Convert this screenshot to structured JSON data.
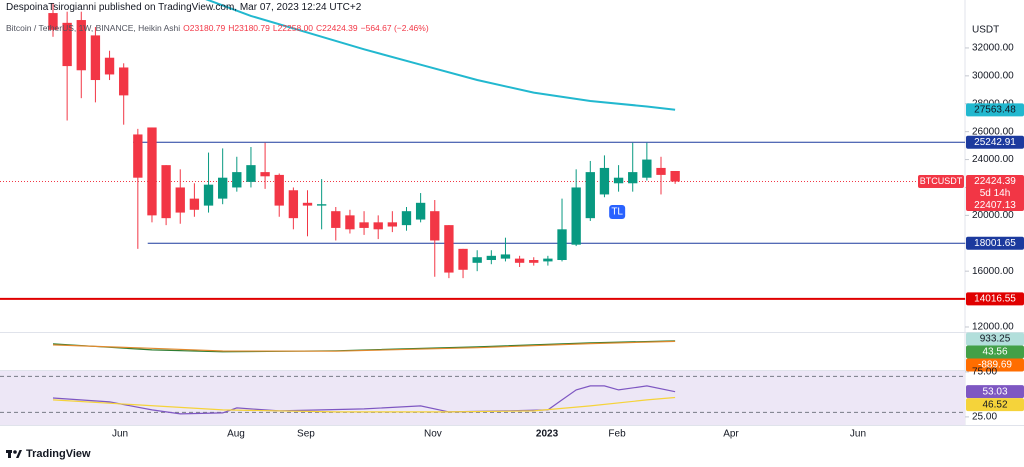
{
  "header": {
    "author_line": "DespoinaTsirogianni published on TradingView.com, Mar 07, 2023 12:24 UTC+2",
    "symbol": "Bitcoin / TetherUS, 1W, BINANCE, Heikin Ashi",
    "ohlc": [
      "O23180.79",
      "H23180.79",
      "L22258.00",
      "C22424.39"
    ],
    "change": "−564.67 (−2.46%)"
  },
  "chart_data": [
    {
      "type": "candlestick",
      "currency": "USDT",
      "open": [
        34500,
        33800,
        34000,
        32900,
        31300,
        30600,
        25800,
        26300,
        23600,
        22000,
        21200,
        20700,
        21200,
        22000,
        22400,
        23100,
        22900,
        21800,
        20900,
        20700,
        20300,
        20000,
        19500,
        19500,
        19500,
        19300,
        19700,
        20300,
        19300,
        17600,
        16600,
        16800,
        16900,
        16900,
        16800,
        16700,
        16800,
        17900,
        19800,
        21500,
        22300,
        22300,
        22700,
        23400,
        23180.79
      ],
      "high": [
        35200,
        34600,
        34600,
        33500,
        31800,
        30900,
        26200,
        26300,
        23600,
        23300,
        22300,
        24500,
        24800,
        24200,
        24900,
        25200,
        23000,
        22000,
        21800,
        22600,
        20600,
        20400,
        20300,
        20000,
        20300,
        20600,
        21600,
        21100,
        19300,
        17600,
        17500,
        17500,
        18400,
        17100,
        17000,
        17100,
        21200,
        23300,
        23900,
        24300,
        23600,
        25200,
        25200,
        24200,
        23180.79
      ],
      "low": [
        32800,
        26800,
        28400,
        28100,
        29700,
        26500,
        17600,
        19500,
        19300,
        19400,
        19900,
        20200,
        20800,
        21700,
        22000,
        21900,
        19900,
        19000,
        18500,
        19000,
        18200,
        18700,
        18600,
        18300,
        18800,
        18900,
        19500,
        15600,
        15500,
        15500,
        16000,
        16500,
        16700,
        16300,
        16400,
        16400,
        16700,
        17800,
        19600,
        21300,
        21700,
        21700,
        22500,
        21500,
        22258
      ],
      "close": [
        33300,
        30700,
        30400,
        29700,
        30100,
        28600,
        22700,
        20000,
        19800,
        20200,
        20400,
        22200,
        22700,
        23100,
        23600,
        22800,
        20700,
        19800,
        20700,
        20800,
        19100,
        19000,
        19100,
        19000,
        19200,
        20300,
        20900,
        18200,
        15900,
        16100,
        17000,
        17100,
        17200,
        16600,
        16600,
        16900,
        19000,
        22000,
        23100,
        23400,
        22700,
        23100,
        24000,
        22900,
        22424.39
      ],
      "up_color": "#089981",
      "down_color": "#f23645",
      "xlim": [
        -3.748,
        64.5
      ],
      "xticks": [
        {
          "value": 4.74,
          "label": "Jun"
        },
        {
          "value": 12.94,
          "label": "Aug"
        },
        {
          "value": 17.89,
          "label": "Sep"
        },
        {
          "value": 26.87,
          "label": "Nov"
        },
        {
          "value": 34.94,
          "label": "2023"
        },
        {
          "value": 39.89,
          "label": "Feb"
        },
        {
          "value": 47.95,
          "label": "Apr"
        },
        {
          "value": 56.93,
          "label": "Jun"
        }
      ],
      "ylim": [
        11640,
        34720
      ],
      "yticks": [
        {
          "value": 12000,
          "label": "12000.00"
        },
        {
          "value": 14000,
          "label": "14000.00"
        },
        {
          "value": 16000,
          "label": "16000.00"
        },
        {
          "value": 18000,
          "label": "18000.00"
        },
        {
          "value": 20000,
          "label": "20000.00"
        },
        {
          "value": 22000,
          "label": "22000.00"
        },
        {
          "value": 24000,
          "label": "24000.00"
        },
        {
          "value": 26000,
          "label": "26000.00"
        },
        {
          "value": 28000,
          "label": "28000.00"
        },
        {
          "value": 30000,
          "label": "30000.00"
        },
        {
          "value": 32000,
          "label": "32000.00"
        }
      ],
      "overlays": [
        {
          "color": "#22b8cf",
          "x": [
            10,
            14,
            18,
            22,
            26,
            30,
            34,
            38,
            42,
            44
          ],
          "values": [
            35800,
            34300,
            33100,
            31900,
            30800,
            29700,
            28800,
            28200,
            27800,
            27563.48
          ]
        }
      ],
      "levels": [
        {
          "value": 25242.91,
          "color": "#1c3a9e",
          "x_start": 5.66
        },
        {
          "value": 18001.65,
          "color": "#1c3a9e",
          "x_start": 6.7
        },
        {
          "value": 14016.55,
          "color": "#e00000"
        }
      ],
      "last_price": {
        "name": "BTCUSDT",
        "value": 22424.39,
        "countdown": "5d 14h",
        "second": 22407.13,
        "color": "#f23645"
      },
      "annotations": [
        {
          "text": "TL",
          "x": 39.9,
          "value": 20240,
          "color": "#2962ff"
        }
      ]
    },
    {
      "type": "line",
      "ylim": [
        -1330,
        1370
      ],
      "series": [
        {
          "color": "#2e7d32",
          "x": [
            0,
            7,
            12,
            20,
            30,
            38,
            44
          ],
          "values": [
            580,
            140,
            0,
            70,
            360,
            650,
            800
          ]
        },
        {
          "color": "#e0892e",
          "x": [
            0,
            7,
            12,
            20,
            30,
            38,
            44
          ],
          "values": [
            500,
            250,
            60,
            40,
            300,
            600,
            760
          ]
        }
      ],
      "last_values": [
        {
          "value": 933.25,
          "color": "#b2dfdb",
          "text_color": "#131722"
        },
        {
          "value": 43.56,
          "color": "#43a047",
          "text_color": "#ffffff"
        },
        {
          "value": -889.69,
          "color": "#ff6d00",
          "text_color": "#ffffff"
        }
      ]
    },
    {
      "type": "line",
      "ylim": [
        16,
        76
      ],
      "yticks": [
        {
          "value": 75,
          "label": "75.00"
        },
        {
          "value": 25,
          "label": "25.00"
        }
      ],
      "bands": [
        30,
        70
      ],
      "band_color": "#ede7f6",
      "series": [
        {
          "color": "#7e57c2",
          "text_color": "#ffffff",
          "x": [
            0,
            4,
            7,
            9,
            12,
            13,
            16,
            19,
            22,
            26,
            28,
            32,
            35,
            36,
            37,
            38,
            39,
            40,
            42,
            44
          ],
          "values": [
            46,
            41.7,
            32.8,
            28.3,
            29.4,
            35,
            31.7,
            32.8,
            33.9,
            37.2,
            30.6,
            31.7,
            32.8,
            43.9,
            55,
            59.4,
            59.4,
            55,
            59.4,
            53.03
          ]
        },
        {
          "color": "#f5d33a",
          "text_color": "#131722",
          "x": [
            0,
            6,
            12,
            20,
            28,
            34,
            38,
            42,
            44
          ],
          "values": [
            43.9,
            38.3,
            32.8,
            30.6,
            30.6,
            31.7,
            37.2,
            43.9,
            46.52
          ]
        }
      ]
    }
  ],
  "footer": "TradingView"
}
